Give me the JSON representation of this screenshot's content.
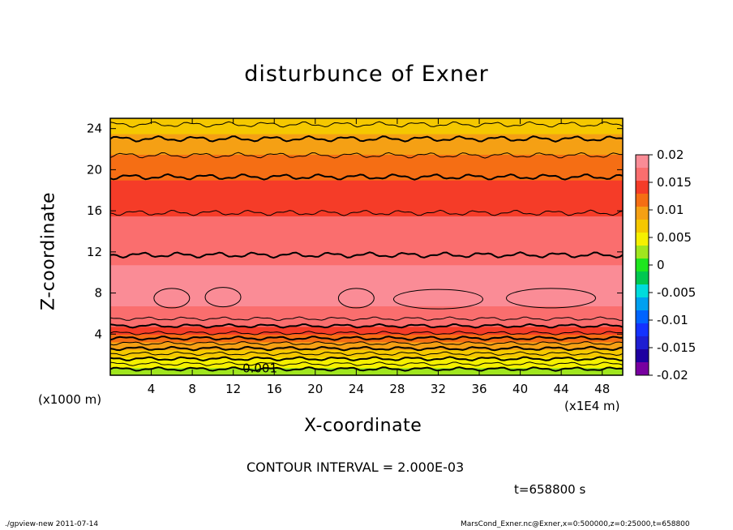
{
  "chart_data": {
    "type": "heatmap",
    "title": "disturbunce of Exner",
    "xlabel": "X-coordinate",
    "ylabel": "Z-coordinate",
    "x_unit_label": "(x1000 m)",
    "x_scale_label": "(x1E4 m)",
    "xlim": [
      0,
      50
    ],
    "ylim": [
      0,
      25
    ],
    "x_ticks": [
      4,
      8,
      12,
      16,
      20,
      24,
      28,
      32,
      36,
      40,
      44,
      48
    ],
    "y_ticks": [
      4,
      8,
      12,
      16,
      20,
      24
    ],
    "colorbar": {
      "ticks": [
        "0.02",
        "0.015",
        "0.01",
        "0.005",
        "0",
        "-0.005",
        "-0.01",
        "-0.015",
        "-0.02"
      ],
      "colors": [
        "#fa8c96",
        "#fa6e6e",
        "#f53c28",
        "#f56e14",
        "#f5a014",
        "#f5c800",
        "#f5f000",
        "#a0e61e",
        "#1ee61e",
        "#00c850",
        "#00dcdc",
        "#00a0f0",
        "#0064ff",
        "#1432ff",
        "#1e1ed2",
        "#1e00a0",
        "#7800a0"
      ]
    },
    "profile": {
      "z": [
        0,
        1,
        2,
        3,
        4,
        5,
        6,
        7,
        8,
        9,
        10,
        11,
        12,
        13,
        14,
        15,
        16,
        17,
        18,
        19,
        20,
        21,
        22,
        23,
        24,
        25
      ],
      "value": [
        0.001,
        0.004,
        0.007,
        0.01,
        0.013,
        0.016,
        0.017,
        0.018,
        0.019,
        0.0185,
        0.018,
        0.0175,
        0.017,
        0.0165,
        0.016,
        0.0155,
        0.015,
        0.0145,
        0.0135,
        0.013,
        0.012,
        0.011,
        0.01,
        0.009,
        0.007,
        0.006
      ]
    },
    "contour_label": "0.001",
    "contour_interval": "CONTOUR INTERVAL = 2.000E-03"
  },
  "time_label": "t=658800 s",
  "footer": {
    "left": "./gpview-new  2011-07-14",
    "right": "MarsCond_Exner.nc@Exner,x=0:500000,z=0:25000,t=658800"
  }
}
